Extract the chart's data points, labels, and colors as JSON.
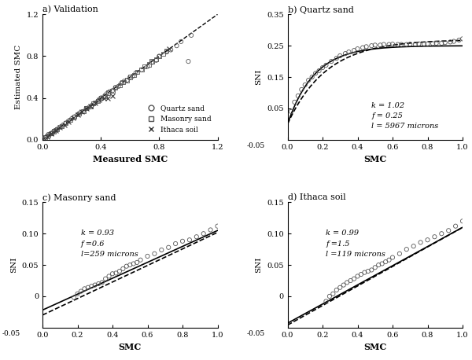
{
  "fig_width": 6.0,
  "fig_height": 4.58,
  "dpi": 100,
  "panel_a": {
    "title": "a) Validation",
    "xlabel": "Measured SMC",
    "ylabel": "Estimated SMC",
    "xlim": [
      0,
      1.2
    ],
    "ylim": [
      0,
      1.2
    ],
    "xticks": [
      0,
      0.4,
      0.8,
      1.2
    ],
    "yticks": [
      0,
      0.4,
      0.8,
      1.2
    ],
    "quartz_x": [
      0.01,
      0.02,
      0.03,
      0.04,
      0.05,
      0.06,
      0.07,
      0.08,
      0.09,
      0.1,
      0.12,
      0.14,
      0.16,
      0.18,
      0.2,
      0.22,
      0.24,
      0.26,
      0.28,
      0.3,
      0.32,
      0.34,
      0.36,
      0.38,
      0.4,
      0.42,
      0.44,
      0.46,
      0.48,
      0.5,
      0.52,
      0.54,
      0.56,
      0.58,
      0.6,
      0.62,
      0.64,
      0.68,
      0.72,
      0.75,
      0.78,
      0.8,
      0.85,
      0.88,
      0.92,
      0.95,
      1.0,
      1.02
    ],
    "quartz_y": [
      0.01,
      0.02,
      0.03,
      0.05,
      0.05,
      0.06,
      0.07,
      0.08,
      0.09,
      0.1,
      0.12,
      0.14,
      0.16,
      0.18,
      0.2,
      0.22,
      0.24,
      0.26,
      0.27,
      0.3,
      0.31,
      0.33,
      0.35,
      0.37,
      0.4,
      0.41,
      0.44,
      0.46,
      0.47,
      0.5,
      0.51,
      0.54,
      0.56,
      0.57,
      0.6,
      0.61,
      0.64,
      0.67,
      0.7,
      0.74,
      0.76,
      0.8,
      0.84,
      0.86,
      0.9,
      0.94,
      0.75,
      1.0
    ],
    "masonry_x": [
      0.02,
      0.04,
      0.06,
      0.08,
      0.1,
      0.13,
      0.16,
      0.19,
      0.22,
      0.25,
      0.28,
      0.3,
      0.33,
      0.35,
      0.38,
      0.4,
      0.43,
      0.45,
      0.48,
      0.5,
      0.53,
      0.55,
      0.58,
      0.6,
      0.63,
      0.65,
      0.68,
      0.7,
      0.73,
      0.75,
      0.78,
      0.8,
      0.83,
      0.85
    ],
    "masonry_y": [
      0.02,
      0.04,
      0.06,
      0.08,
      0.1,
      0.13,
      0.16,
      0.19,
      0.22,
      0.25,
      0.27,
      0.3,
      0.32,
      0.35,
      0.37,
      0.4,
      0.42,
      0.45,
      0.47,
      0.5,
      0.52,
      0.55,
      0.57,
      0.6,
      0.62,
      0.65,
      0.67,
      0.7,
      0.72,
      0.75,
      0.77,
      0.8,
      0.82,
      0.85
    ],
    "ithaca_x": [
      0.03,
      0.06,
      0.09,
      0.12,
      0.15,
      0.18,
      0.21,
      0.24,
      0.27,
      0.3,
      0.33,
      0.36,
      0.39,
      0.42,
      0.45,
      0.48,
      0.87
    ],
    "ithaca_y": [
      0.03,
      0.06,
      0.09,
      0.12,
      0.14,
      0.17,
      0.21,
      0.24,
      0.27,
      0.3,
      0.32,
      0.35,
      0.38,
      0.4,
      0.4,
      0.42,
      0.87
    ],
    "line_x": [
      0,
      1.2
    ],
    "line_y": [
      0,
      1.2
    ]
  },
  "panel_b": {
    "title": "b) Quartz sand",
    "xlabel": "SMC",
    "ylabel": "SNI",
    "xlim": [
      0,
      1.0
    ],
    "ylim": [
      -0.05,
      0.35
    ],
    "xticks": [
      0,
      0.2,
      0.4,
      0.6,
      0.8,
      1.0
    ],
    "yticks": [
      0.05,
      0.15,
      0.25,
      0.35
    ],
    "ytick_labels": [
      "0.05",
      "0.15",
      "0.25",
      "0.35"
    ],
    "k": 1.02,
    "f": 0.25,
    "l": 5967,
    "ann_k": "k = 1.02",
    "ann_f": "f = 0.25",
    "ann_l": "l = 5967 microns",
    "solid_a": 0.25,
    "solid_k": 6.5,
    "dashed_a": 0.27,
    "dashed_k": 4.5,
    "data_x": [
      0.02,
      0.04,
      0.06,
      0.08,
      0.1,
      0.12,
      0.14,
      0.16,
      0.18,
      0.2,
      0.22,
      0.25,
      0.28,
      0.3,
      0.33,
      0.35,
      0.38,
      0.4,
      0.43,
      0.45,
      0.48,
      0.5,
      0.53,
      0.55,
      0.58,
      0.6,
      0.63,
      0.65,
      0.68,
      0.7,
      0.73,
      0.75,
      0.78,
      0.8,
      0.83,
      0.85,
      0.88,
      0.9,
      0.93,
      0.95,
      0.98,
      1.0
    ],
    "data_y": [
      0.04,
      0.07,
      0.09,
      0.11,
      0.125,
      0.14,
      0.15,
      0.162,
      0.17,
      0.18,
      0.188,
      0.2,
      0.21,
      0.218,
      0.225,
      0.23,
      0.235,
      0.24,
      0.244,
      0.247,
      0.25,
      0.252,
      0.252,
      0.254,
      0.254,
      0.255,
      0.254,
      0.254,
      0.254,
      0.255,
      0.255,
      0.256,
      0.256,
      0.256,
      0.257,
      0.258,
      0.258,
      0.26,
      0.262,
      0.264,
      0.268,
      0.272
    ]
  },
  "panel_c": {
    "title": "c) Masonry sand",
    "xlabel": "SMC",
    "ylabel": "SNI",
    "xlim": [
      0,
      1.0
    ],
    "ylim": [
      -0.05,
      0.15
    ],
    "xticks": [
      0,
      0.2,
      0.4,
      0.6,
      0.8,
      1.0
    ],
    "yticks": [
      0,
      0.05,
      0.1,
      0.15
    ],
    "ytick_labels": [
      "0",
      "0.05",
      "0.10",
      "0.15"
    ],
    "k": 0.93,
    "f": 0.6,
    "l": 259,
    "ann_k": "k = 0.93",
    "ann_f": "f =0.6",
    "ann_l": "l=259 microns",
    "solid_slope": 0.127,
    "solid_intercept": -0.022,
    "dashed_slope": 0.132,
    "dashed_intercept": -0.03,
    "data_x": [
      0.18,
      0.2,
      0.22,
      0.24,
      0.26,
      0.28,
      0.3,
      0.32,
      0.34,
      0.36,
      0.38,
      0.4,
      0.42,
      0.44,
      0.46,
      0.48,
      0.5,
      0.52,
      0.54,
      0.56,
      0.6,
      0.64,
      0.68,
      0.72,
      0.76,
      0.8,
      0.84,
      0.88,
      0.92,
      0.96,
      1.0
    ],
    "data_y": [
      -0.002,
      0.004,
      0.008,
      0.012,
      0.014,
      0.016,
      0.018,
      0.02,
      0.022,
      0.028,
      0.032,
      0.036,
      0.037,
      0.04,
      0.044,
      0.048,
      0.05,
      0.052,
      0.054,
      0.058,
      0.064,
      0.068,
      0.074,
      0.078,
      0.084,
      0.088,
      0.09,
      0.095,
      0.1,
      0.106,
      0.112
    ]
  },
  "panel_d": {
    "title": "d) Ithaca soil",
    "xlabel": "SMC",
    "ylabel": "SNI",
    "xlim": [
      0,
      1.0
    ],
    "ylim": [
      -0.05,
      0.15
    ],
    "xticks": [
      0,
      0.2,
      0.4,
      0.6,
      0.8,
      1.0
    ],
    "yticks": [
      0,
      0.05,
      0.1,
      0.15
    ],
    "ytick_labels": [
      "0",
      "0.05",
      "0.10",
      "0.15"
    ],
    "k": 0.99,
    "f": 1.5,
    "l": 119,
    "ann_k": "k = 0.99",
    "ann_f": "f =1.5",
    "ann_l": "l =119 microns",
    "solid_slope": 0.153,
    "solid_intercept": -0.043,
    "dashed_slope": 0.156,
    "dashed_intercept": -0.046,
    "data_x": [
      0.22,
      0.24,
      0.26,
      0.28,
      0.3,
      0.32,
      0.34,
      0.36,
      0.38,
      0.4,
      0.42,
      0.44,
      0.46,
      0.48,
      0.5,
      0.52,
      0.54,
      0.56,
      0.58,
      0.6,
      0.64,
      0.68,
      0.72,
      0.76,
      0.8,
      0.84,
      0.88,
      0.92,
      0.96,
      1.0
    ],
    "data_y": [
      -0.008,
      0.0,
      0.004,
      0.01,
      0.014,
      0.018,
      0.022,
      0.025,
      0.028,
      0.032,
      0.035,
      0.038,
      0.04,
      0.042,
      0.046,
      0.05,
      0.052,
      0.055,
      0.058,
      0.062,
      0.068,
      0.075,
      0.08,
      0.086,
      0.09,
      0.095,
      0.1,
      0.105,
      0.112,
      0.12
    ]
  }
}
